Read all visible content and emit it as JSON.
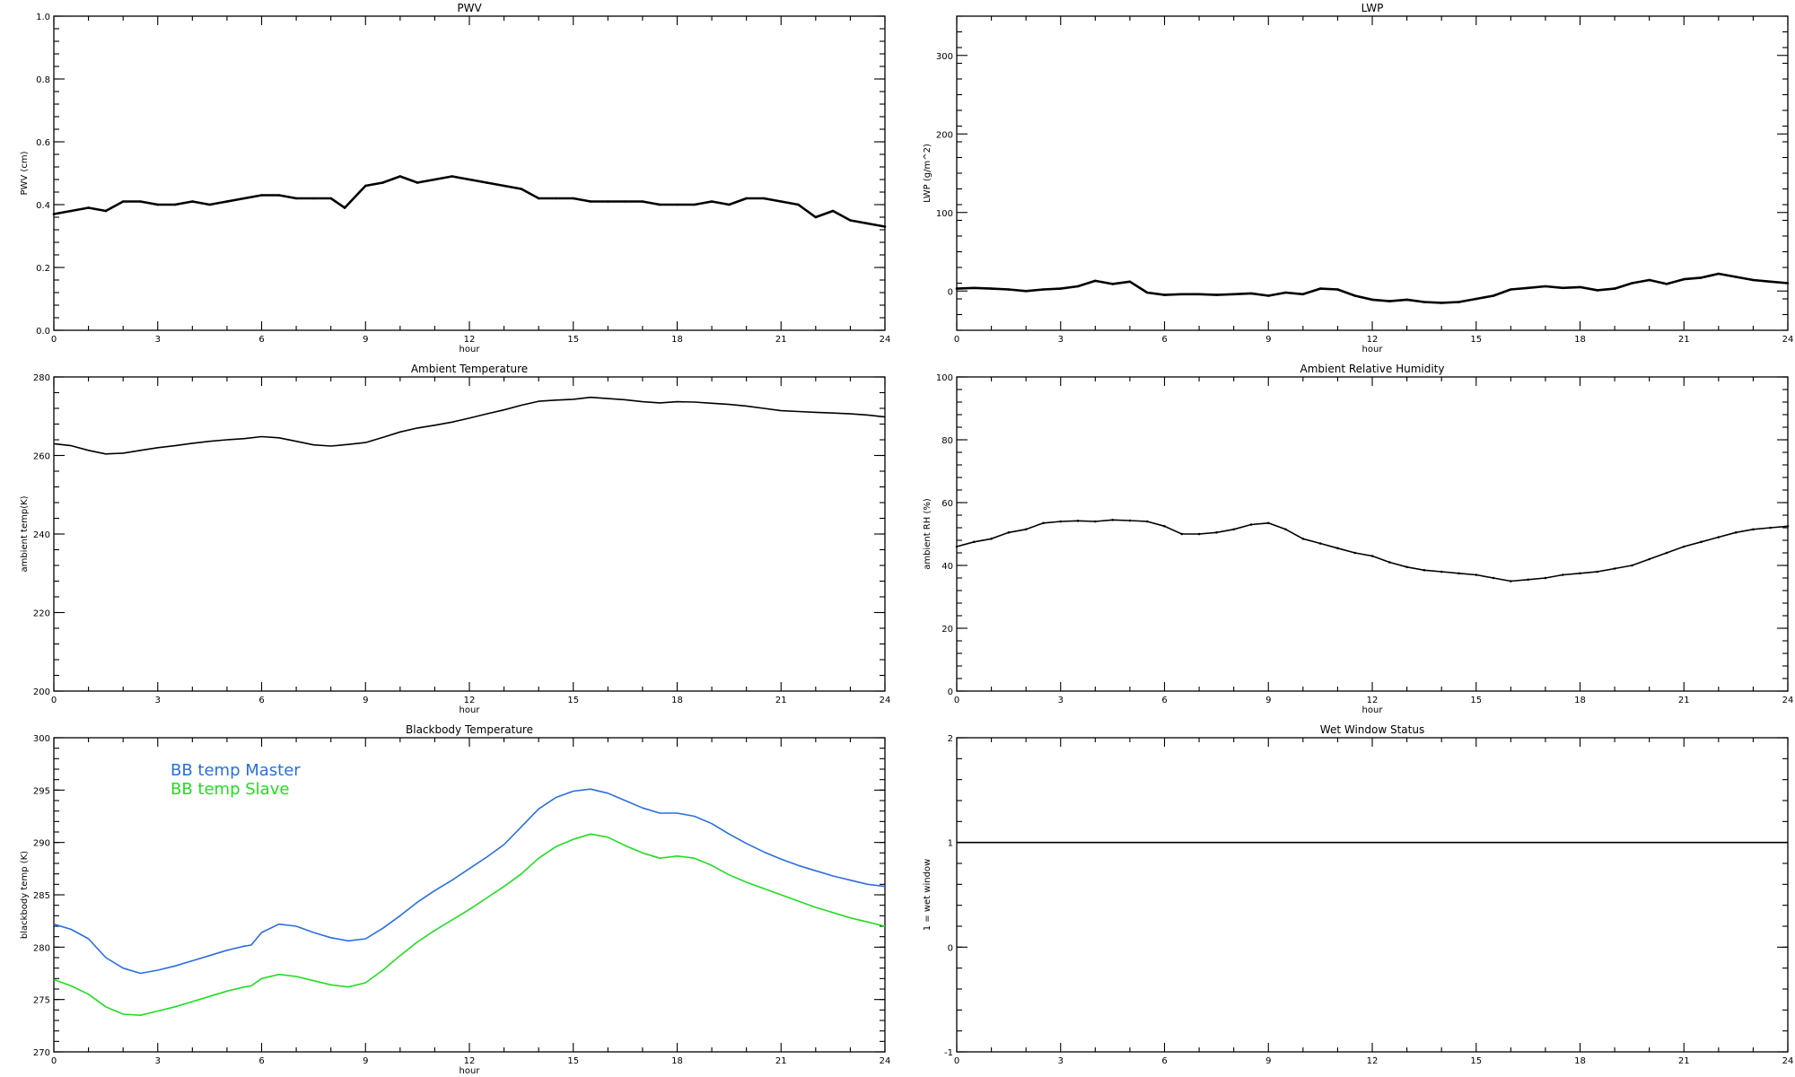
{
  "chart_data": [
    {
      "type": "line",
      "title": "PWV",
      "xlabel": "hour",
      "ylabel": "PWV (cm)",
      "xlim": [
        0,
        24
      ],
      "ylim": [
        0.0,
        1.0
      ],
      "xticks": [
        "0",
        "3",
        "6",
        "9",
        "12",
        "15",
        "18",
        "21",
        "24"
      ],
      "yticks": [
        "0.0",
        "0.2",
        "0.4",
        "0.6",
        "0.8",
        "1.0"
      ],
      "series": [
        {
          "color": "#000000",
          "x": [
            0,
            0.5,
            1,
            1.5,
            2,
            2.5,
            3,
            3.5,
            4,
            4.5,
            5,
            5.5,
            6,
            6.5,
            7,
            7.5,
            8,
            8.4,
            9,
            9.5,
            10,
            10.5,
            11,
            11.5,
            12,
            12.5,
            13,
            13.5,
            14,
            14.5,
            15,
            15.5,
            16,
            16.5,
            17,
            17.5,
            18,
            18.5,
            19,
            19.5,
            20,
            20.5,
            21,
            21.5,
            22,
            22.5,
            23,
            23.5,
            24
          ],
          "values": [
            0.37,
            0.38,
            0.39,
            0.38,
            0.41,
            0.41,
            0.4,
            0.4,
            0.41,
            0.4,
            0.41,
            0.42,
            0.43,
            0.43,
            0.42,
            0.42,
            0.42,
            0.39,
            0.46,
            0.47,
            0.49,
            0.47,
            0.48,
            0.49,
            0.48,
            0.47,
            0.46,
            0.45,
            0.42,
            0.42,
            0.42,
            0.41,
            0.41,
            0.41,
            0.41,
            0.4,
            0.4,
            0.4,
            0.41,
            0.4,
            0.42,
            0.42,
            0.41,
            0.4,
            0.36,
            0.38,
            0.35,
            0.34,
            0.33
          ]
        }
      ]
    },
    {
      "type": "line",
      "title": "LWP",
      "xlabel": "hour",
      "ylabel": "LWP (g/m^2)",
      "xlim": [
        0,
        24
      ],
      "ylim": [
        -50,
        350
      ],
      "xticks": [
        "0",
        "3",
        "6",
        "9",
        "12",
        "15",
        "18",
        "21",
        "24"
      ],
      "yticks": [
        "0",
        "100",
        "200",
        "300"
      ],
      "series": [
        {
          "color": "#000000",
          "x": [
            0,
            0.5,
            1,
            1.5,
            2,
            2.5,
            3,
            3.5,
            4,
            4.5,
            5,
            5.5,
            6,
            6.5,
            7,
            7.5,
            8,
            8.5,
            9,
            9.5,
            10,
            10.5,
            11,
            11.5,
            12,
            12.5,
            13,
            13.5,
            14,
            14.5,
            15,
            15.5,
            16,
            16.5,
            17,
            17.5,
            18,
            18.5,
            19,
            19.5,
            20,
            20.5,
            21,
            21.5,
            22,
            22.5,
            23,
            23.5,
            24
          ],
          "values": [
            3,
            4,
            3,
            2,
            0,
            2,
            3,
            6,
            13,
            9,
            12,
            -2,
            -5,
            -4,
            -4,
            -5,
            -4,
            -3,
            -6,
            -2,
            -4,
            3,
            2,
            -6,
            -11,
            -13,
            -11,
            -14,
            -15,
            -14,
            -10,
            -6,
            2,
            4,
            6,
            4,
            5,
            1,
            3,
            10,
            14,
            9,
            15,
            17,
            22,
            18,
            14,
            12,
            10
          ]
        }
      ]
    },
    {
      "type": "line",
      "title": "Ambient Temperature",
      "xlabel": "hour",
      "ylabel": "ambient temp(K)",
      "xlim": [
        0,
        24
      ],
      "ylim": [
        200,
        280
      ],
      "xticks": [
        "0",
        "3",
        "6",
        "9",
        "12",
        "15",
        "18",
        "21",
        "24"
      ],
      "yticks": [
        "200",
        "220",
        "240",
        "260",
        "280"
      ],
      "series": [
        {
          "color": "#000000",
          "x": [
            0,
            0.5,
            1,
            1.5,
            2,
            2.5,
            3,
            3.5,
            4,
            4.5,
            5,
            5.5,
            6,
            6.5,
            7,
            7.5,
            8,
            8.5,
            9,
            9.5,
            10,
            10.5,
            11,
            11.5,
            12,
            12.5,
            13,
            13.5,
            14,
            14.5,
            15,
            15.5,
            16,
            16.5,
            17,
            17.5,
            18,
            18.5,
            19,
            19.5,
            20,
            20.5,
            21,
            21.5,
            22,
            22.5,
            23,
            23.5,
            24
          ],
          "values": [
            263.0,
            262.5,
            261.3,
            260.4,
            260.6,
            261.3,
            262.0,
            262.5,
            263.1,
            263.6,
            264.0,
            264.3,
            264.8,
            264.5,
            263.6,
            262.7,
            262.4,
            262.8,
            263.3,
            264.6,
            266.0,
            267.0,
            267.7,
            268.5,
            269.5,
            270.6,
            271.6,
            272.8,
            273.8,
            274.1,
            274.3,
            274.8,
            274.5,
            274.2,
            273.7,
            273.4,
            273.7,
            273.6,
            273.3,
            273.0,
            272.6,
            272.0,
            271.4,
            271.2,
            271.0,
            270.8,
            270.6,
            270.3,
            269.8
          ]
        }
      ]
    },
    {
      "type": "scatter",
      "title": "Ambient Relative Humidity",
      "xlabel": "hour",
      "ylabel": "ambient RH (%)",
      "xlim": [
        0,
        24
      ],
      "ylim": [
        0,
        100
      ],
      "xticks": [
        "0",
        "3",
        "6",
        "9",
        "12",
        "15",
        "18",
        "21",
        "24"
      ],
      "yticks": [
        "0",
        "20",
        "40",
        "60",
        "80",
        "100"
      ],
      "series": [
        {
          "color": "#000000",
          "x": [
            0,
            0.5,
            1,
            1.5,
            2,
            2.5,
            3,
            3.5,
            4,
            4.5,
            5,
            5.5,
            6,
            6.5,
            7,
            7.5,
            8,
            8.5,
            9,
            9.5,
            10,
            10.5,
            11,
            11.5,
            12,
            12.5,
            13,
            13.5,
            14,
            14.5,
            15,
            15.5,
            16,
            16.5,
            17,
            17.5,
            18,
            18.5,
            19,
            19.5,
            20,
            20.5,
            21,
            21.5,
            22,
            22.5,
            23,
            23.5,
            24
          ],
          "values": [
            46,
            47.5,
            48.5,
            50.5,
            51.5,
            53.5,
            54,
            54.2,
            54,
            54.5,
            54.3,
            54,
            52.5,
            50,
            50,
            50.5,
            51.5,
            53,
            53.5,
            51.5,
            48.5,
            47,
            45.5,
            44,
            43,
            41,
            39.5,
            38.5,
            38,
            37.5,
            37,
            36,
            35,
            35.5,
            36,
            37,
            37.5,
            38,
            39,
            40,
            42,
            44,
            46,
            47.5,
            49,
            50.5,
            51.5,
            52,
            52.5
          ]
        }
      ]
    },
    {
      "type": "line",
      "title": "Blackbody Temperature",
      "xlabel": "hour",
      "ylabel": "blackbody temp (K)",
      "xlim": [
        0,
        24
      ],
      "ylim": [
        270,
        300
      ],
      "xticks": [
        "0",
        "3",
        "6",
        "9",
        "12",
        "15",
        "18",
        "21",
        "24"
      ],
      "yticks": [
        "270",
        "275",
        "280",
        "285",
        "290",
        "295",
        "300"
      ],
      "legend": "top-left",
      "series": [
        {
          "name": "BB temp Master",
          "color": "#2a6fe0",
          "x": [
            0,
            0.5,
            1,
            1.5,
            2,
            2.5,
            3,
            3.5,
            4,
            4.5,
            5,
            5.5,
            5.7,
            6,
            6.5,
            7,
            7.5,
            8,
            8.5,
            9,
            9.5,
            10,
            10.5,
            11,
            11.5,
            12,
            12.5,
            13,
            13.5,
            14,
            14.5,
            15,
            15.5,
            16,
            16.5,
            17,
            17.5,
            18,
            18.5,
            19,
            19.5,
            20,
            20.5,
            21,
            21.5,
            22,
            22.5,
            23,
            23.5,
            24
          ],
          "values": [
            282.2,
            281.7,
            280.8,
            279.0,
            278.0,
            277.5,
            277.8,
            278.2,
            278.7,
            279.2,
            279.7,
            280.1,
            280.2,
            281.4,
            282.2,
            282.0,
            281.4,
            280.9,
            280.6,
            280.8,
            281.8,
            283.0,
            284.3,
            285.4,
            286.4,
            287.5,
            288.6,
            289.8,
            291.5,
            293.2,
            294.3,
            294.9,
            295.1,
            294.7,
            294.0,
            293.3,
            292.8,
            292.8,
            292.5,
            291.8,
            290.8,
            289.9,
            289.1,
            288.4,
            287.8,
            287.3,
            286.8,
            286.4,
            286.0,
            285.8
          ]
        },
        {
          "name": "BB temp Slave",
          "color": "#22dd22",
          "x": [
            0,
            0.5,
            1,
            1.5,
            2,
            2.5,
            3,
            3.5,
            4,
            4.5,
            5,
            5.5,
            5.7,
            6,
            6.5,
            7,
            7.5,
            8,
            8.5,
            9,
            9.5,
            10,
            10.5,
            11,
            11.5,
            12,
            12.5,
            13,
            13.5,
            14,
            14.5,
            15,
            15.5,
            16,
            16.5,
            17,
            17.5,
            18,
            18.5,
            19,
            19.5,
            20,
            20.5,
            21,
            21.5,
            22,
            22.5,
            23,
            23.5,
            24
          ],
          "values": [
            276.9,
            276.3,
            275.5,
            274.3,
            273.6,
            273.5,
            273.9,
            274.3,
            274.8,
            275.3,
            275.8,
            276.2,
            276.3,
            277.0,
            277.4,
            277.2,
            276.8,
            276.4,
            276.2,
            276.6,
            277.8,
            279.2,
            280.5,
            281.6,
            282.6,
            283.6,
            284.7,
            285.8,
            287.0,
            288.5,
            289.6,
            290.3,
            290.8,
            290.5,
            289.7,
            289.0,
            288.5,
            288.7,
            288.5,
            287.8,
            286.9,
            286.2,
            285.6,
            285.0,
            284.4,
            283.8,
            283.3,
            282.8,
            282.4,
            282.0
          ]
        }
      ]
    },
    {
      "type": "line",
      "title": "Wet Window Status",
      "xlabel": "",
      "ylabel": "1 = wet window",
      "xlim": [
        0,
        24
      ],
      "ylim": [
        -1,
        2
      ],
      "xticks": [
        "0",
        "3",
        "6",
        "9",
        "12",
        "15",
        "18",
        "21",
        "24"
      ],
      "yticks": [
        "-1",
        "0",
        "1",
        "2"
      ],
      "series": [
        {
          "color": "#000000",
          "x": [
            0,
            24
          ],
          "values": [
            1,
            1
          ]
        }
      ]
    }
  ]
}
